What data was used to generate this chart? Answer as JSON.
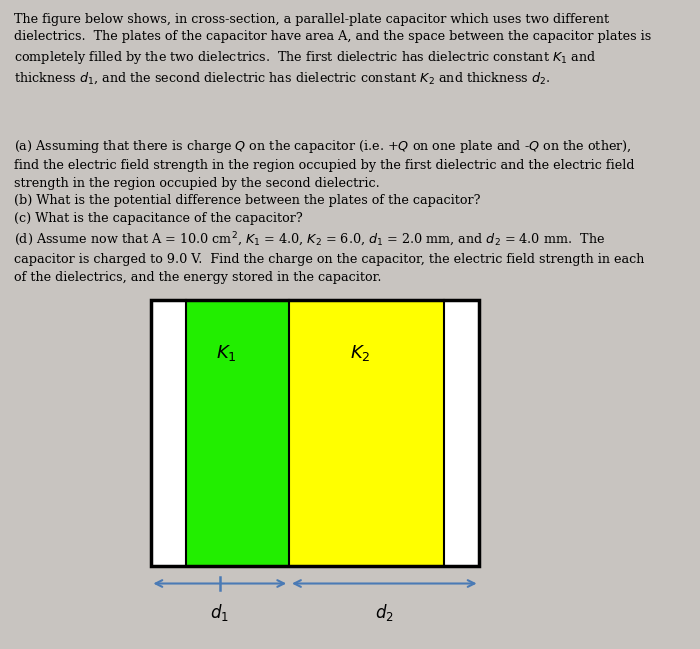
{
  "bg_color": "#c8c4c0",
  "text_color": "#000000",
  "plate_color": "#ffffff",
  "plate_border_color": "#000000",
  "dielectric1_color": "#22ee00",
  "dielectric2_color": "#ffff00",
  "arrow_color": "#4a7ab5",
  "K1_label": "$K_1$",
  "K2_label": "$K_2$",
  "d1_label": "$d_1$",
  "d2_label": "$d_2$",
  "intro_text": "The figure below shows, in cross-section, a parallel-plate capacitor which uses two different\ndielectrics.  The plates of the capacitor have area A, and the space between the capacitor plates is\ncompletely filled by the two dielectrics.  The first dielectric has dielectric constant K1 and\nthickness d1, and the second dielectric has dielectric constant K2 and thickness d2.",
  "body_text": "(a) Assuming that there is charge Q on the capacitor (i.e. +Q on one plate and -Q on the other),\nfind the electric field strength in the region occupied by the first dielectric and the electric field\nstrength in the region occupied by the second dielectric.\n(b) What is the potential difference between the plates of the capacitor?\n(c) What is the capacitance of the capacitor?\n(d) Assume now that A = 10.0 cm², K1 = 4.0, K2 = 6.0, d1 = 2.0 mm, and d2 = 4.0 mm.  The\ncapacitor is charged to 9.0 V.  Find the charge on the capacitor, the electric field strength in each\nof the dielectrics, and the energy stored in the capacitor.",
  "fig_width": 7.0,
  "fig_height": 6.49,
  "dpi": 100
}
